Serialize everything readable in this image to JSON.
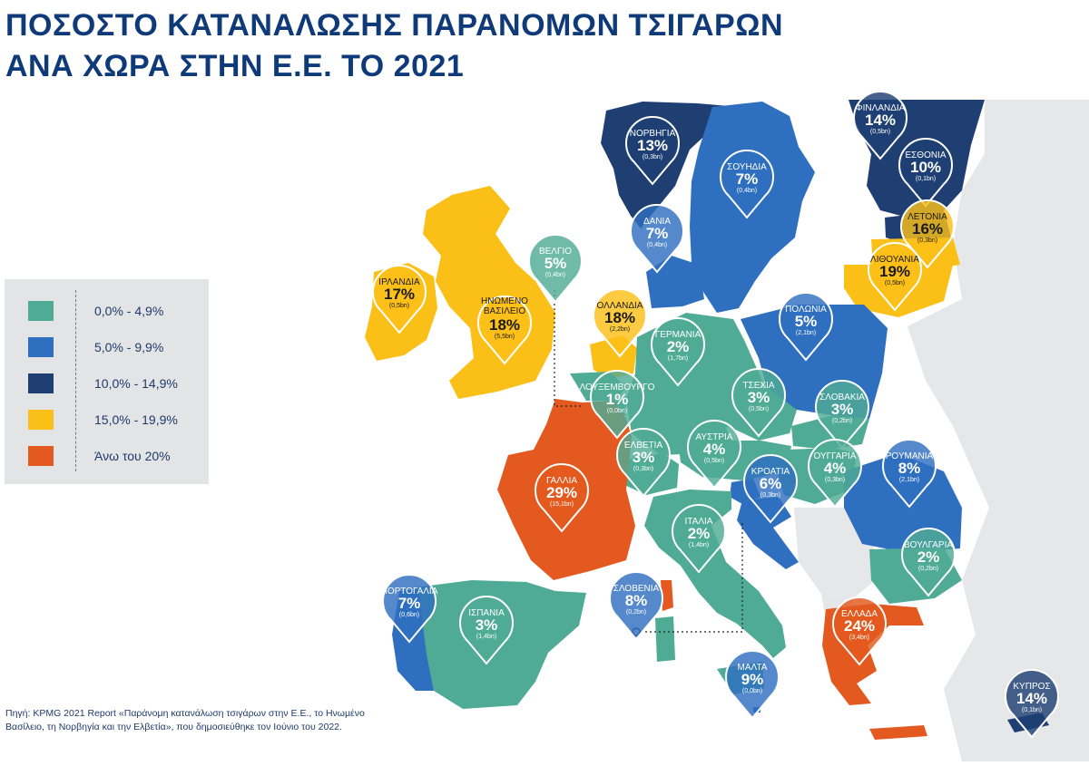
{
  "title": {
    "line1": "ΠΟΣΟΣΤΟ ΚΑΤΑΝΑΛΩΣΗΣ ΠΑΡΑΝΟΜΩΝ ΤΣΙΓΑΡΩΝ",
    "line2": "ΑΝΑ ΧΩΡΑ ΣΤΗΝ Ε.Ε. ΤΟ 2021"
  },
  "colors": {
    "teal": "#4fab95",
    "blue": "#2f6fc0",
    "navy": "#1f3f73",
    "yellow": "#fbc018",
    "orange": "#e3591f",
    "land_other": "#e6e7e8",
    "sea": "#ffffff"
  },
  "legend": [
    {
      "label": "0,0% - 4,9%",
      "color": "#4fab95"
    },
    {
      "label": "5,0% - 9,9%",
      "color": "#2f6fc0"
    },
    {
      "label": "10,0% - 14,9%",
      "color": "#1f3f73"
    },
    {
      "label": "15,0% - 19,9%",
      "color": "#fbc018"
    },
    {
      "label": "Άνω του 20%",
      "color": "#e3591f"
    }
  ],
  "countries": [
    {
      "name": "ΝΟΡΒΗΓΙΑ",
      "pct": "13%",
      "value": "(0,3bn)",
      "color": "#1f3f73"
    },
    {
      "name": "ΣΟΥΗΔΙΑ",
      "pct": "7%",
      "value": "(0,4bn)",
      "color": "#2f6fc0"
    },
    {
      "name": "ΦΙΝΛΑΝΔΙΑ",
      "pct": "14%",
      "value": "(0,5bn)",
      "color": "#1f3f73"
    },
    {
      "name": "ΕΣΘΟΝΙΑ",
      "pct": "10%",
      "value": "(0,1bn)",
      "color": "#1f3f73"
    },
    {
      "name": "ΛΕΤΟΝΙΑ",
      "pct": "16%",
      "value": "(0,3bn)",
      "color": "#fbc018"
    },
    {
      "name": "ΛΙΘΟΥΑΝΙΑ",
      "pct": "19%",
      "value": "(0,5bn)",
      "color": "#fbc018"
    },
    {
      "name": "ΔΑΝΙΑ",
      "pct": "7%",
      "value": "(0,4bn)",
      "color": "#2f6fc0"
    },
    {
      "name": "ΒΕΛΓΙΟ",
      "pct": "5%",
      "value": "(0,4bn)",
      "color": "#4fab95"
    },
    {
      "name": "ΙΡΛΑΝΔΙΑ",
      "pct": "17%",
      "value": "(0,5bn)",
      "color": "#fbc018"
    },
    {
      "name": "ΗΝΩΜΕΝΟ ΒΑΣΙΛΕΙΟ",
      "pct": "18%",
      "value": "(5,5bn)",
      "color": "#fbc018"
    },
    {
      "name": "ΟΛΛΑΝΔΙΑ",
      "pct": "18%",
      "value": "(2,2bn)",
      "color": "#fbc018"
    },
    {
      "name": "ΓΕΡΜΑΝΙΑ",
      "pct": "2%",
      "value": "(1,7bn)",
      "color": "#4fab95"
    },
    {
      "name": "ΠΟΛΩΝΙΑ",
      "pct": "5%",
      "value": "(2,1bn)",
      "color": "#2f6fc0"
    },
    {
      "name": "ΛΟΥΞΕΜΒΟΥΡΓΟ",
      "pct": "1%",
      "value": "(0,0bn)",
      "color": "#4fab95"
    },
    {
      "name": "ΤΣΕΧΙΑ",
      "pct": "3%",
      "value": "(0,5bn)",
      "color": "#4fab95"
    },
    {
      "name": "ΣΛΟΒΑΚΙΑ",
      "pct": "3%",
      "value": "(0,2bn)",
      "color": "#4fab95"
    },
    {
      "name": "ΕΛΒΕΤΙΑ",
      "pct": "3%",
      "value": "(0,3bn)",
      "color": "#4fab95"
    },
    {
      "name": "ΑΥΣΤΡΙΑ",
      "pct": "4%",
      "value": "(0,5bn)",
      "color": "#4fab95"
    },
    {
      "name": "ΟΥΓΓΑΡΙΑ",
      "pct": "4%",
      "value": "(0,3bn)",
      "color": "#4fab95"
    },
    {
      "name": "ΡΟΥΜΑΝΙΑ",
      "pct": "8%",
      "value": "(2,1bn)",
      "color": "#2f6fc0"
    },
    {
      "name": "ΓΑΛΛΙΑ",
      "pct": "29%",
      "value": "(15,1bn)",
      "color": "#e3591f"
    },
    {
      "name": "ΚΡΟΑΤΙΑ",
      "pct": "6%",
      "value": "(0,3bn)",
      "color": "#2f6fc0"
    },
    {
      "name": "ΙΤΑΛΙΑ",
      "pct": "2%",
      "value": "(1,4bn)",
      "color": "#4fab95"
    },
    {
      "name": "ΒΟΥΛΓΑΡΙΑ",
      "pct": "2%",
      "value": "(0,2bn)",
      "color": "#4fab95"
    },
    {
      "name": "ΠΟΡΤΟΓΑΛΙΑ",
      "pct": "7%",
      "value": "(0,6bn)",
      "color": "#2f6fc0"
    },
    {
      "name": "ΙΣΠΑΝΙΑ",
      "pct": "3%",
      "value": "(1,4bn)",
      "color": "#4fab95"
    },
    {
      "name": "ΣΛΟΒΕΝΙΑ",
      "pct": "8%",
      "value": "(0,2bn)",
      "color": "#2f6fc0"
    },
    {
      "name": "ΕΛΛΑΔΑ",
      "pct": "24%",
      "value": "(3,4bn)",
      "color": "#e3591f"
    },
    {
      "name": "ΜΑΛΤΑ",
      "pct": "9%",
      "value": "(0,0bn)",
      "color": "#2f6fc0"
    },
    {
      "name": "ΚΥΠΡΟΣ",
      "pct": "14%",
      "value": "(0,1bn)",
      "color": "#1f3f73"
    }
  ],
  "source": "Πηγή: KPMG 2021 Report «Παράνομη κατανάλωση τσιγάρων στην Ε.Ε., το Ηνωμένο Βασίλειο, τη Νορβηγία και την Ελβετία», που δημοσιεύθηκε τον Ιούνιο του 2022."
}
